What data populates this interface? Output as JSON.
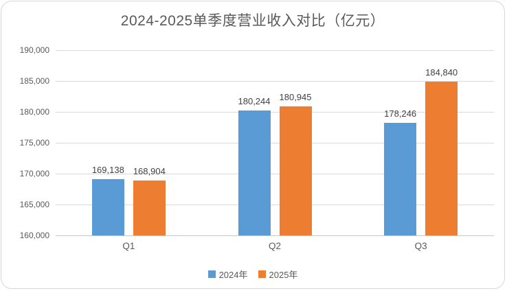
{
  "chart_data": {
    "type": "bar",
    "title": "2024-2025单季度营业收入对比（亿元）",
    "categories": [
      "Q1",
      "Q2",
      "Q3"
    ],
    "series": [
      {
        "name": "2024年",
        "color": "#5B9BD5",
        "values": [
          169138,
          180244,
          178246
        ],
        "labels": [
          "169,138",
          "180,244",
          "178,246"
        ]
      },
      {
        "name": "2025年",
        "color": "#ED7D31",
        "values": [
          168904,
          180945,
          184840
        ],
        "labels": [
          "168,904",
          "180,945",
          "184,840"
        ]
      }
    ],
    "y_axis": {
      "min": 160000,
      "max": 190000,
      "step": 5000,
      "tick_labels": [
        "160,000",
        "165,000",
        "170,000",
        "175,000",
        "180,000",
        "185,000",
        "190,000"
      ]
    },
    "xlabel": "",
    "ylabel": "",
    "grid": true,
    "legend_position": "bottom",
    "colors": {
      "title_text": "#595959",
      "axis_text": "#595959",
      "data_label_text": "#404040",
      "gridline": "#D9D9D9",
      "frame_border": "#D7D7D7",
      "background": "#FFFFFF"
    }
  }
}
